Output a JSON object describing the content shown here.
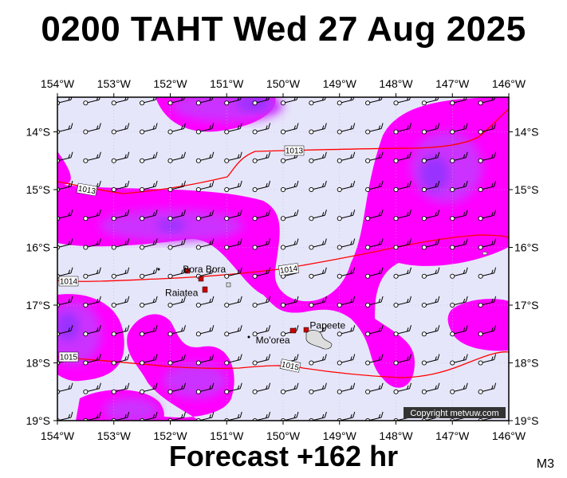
{
  "title": "0200 TAHT Wed 27 Aug 2025",
  "footer": "Forecast +162 hr",
  "model_code": "M3",
  "copyright": "Copyright metvuw.com",
  "map": {
    "lon_min": -154,
    "lon_max": -146,
    "lat_min": -19,
    "lat_max": -13.4,
    "lon_ticks": [
      "154°W",
      "153°W",
      "152°W",
      "151°W",
      "150°W",
      "149°W",
      "148°W",
      "147°W",
      "146°W"
    ],
    "lat_ticks": [
      "14°S",
      "15°S",
      "16°S",
      "17°S",
      "18°S",
      "19°S"
    ],
    "background_color": "#e6e6fa",
    "rain_colors": {
      "light": "#ff00ff",
      "medium": "#cc33ff",
      "heavy": "#9933ff"
    },
    "isobar_color": "#ff0000",
    "isobar_labels": [
      "1013",
      "1013",
      "1014",
      "1014",
      "1015",
      "1015"
    ],
    "places": [
      {
        "name": "Bora Bora",
        "lon": -151.75,
        "lat": -16.5
      },
      {
        "name": "Raiatea",
        "lon": -151.45,
        "lat": -16.8
      },
      {
        "name": "Mo'orea",
        "lon": -149.85,
        "lat": -17.55
      },
      {
        "name": "Papeete",
        "lon": -149.57,
        "lat": -17.53
      }
    ]
  }
}
